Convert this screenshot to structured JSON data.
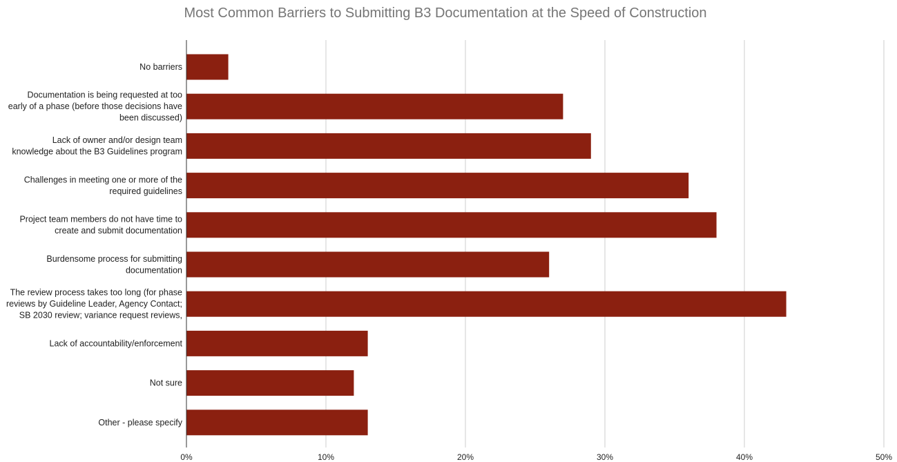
{
  "chart_data": {
    "type": "bar",
    "orientation": "horizontal",
    "title": "Most Common Barriers to Submitting B3 Documentation at the Speed of Construction",
    "xlabel": "",
    "ylabel": "",
    "xlim": [
      0,
      50
    ],
    "x_ticks": [
      "0%",
      "10%",
      "20%",
      "30%",
      "40%",
      "50%"
    ],
    "grid": true,
    "legend": "none",
    "bar_color": "#8B2010",
    "categories": [
      [
        "No barriers"
      ],
      [
        "Documentation is being requested at too",
        "early of a phase (before those decisions have",
        "been discussed)"
      ],
      [
        "Lack of owner and/or design team",
        "knowledge about the B3 Guidelines program"
      ],
      [
        "Challenges in meeting one or more of the",
        "required guidelines"
      ],
      [
        "Project team members do not have time to",
        "create and submit documentation"
      ],
      [
        "Burdensome process for submitting",
        "documentation"
      ],
      [
        "The review process takes too long (for phase",
        "reviews by Guideline Leader, Agency Contact;",
        "SB 2030 review; variance request reviews,"
      ],
      [
        "Lack of accountability/enforcement"
      ],
      [
        "Not sure"
      ],
      [
        "Other - please specify"
      ]
    ],
    "values": [
      3,
      27,
      29,
      36,
      38,
      26,
      43,
      13,
      12,
      13
    ]
  }
}
